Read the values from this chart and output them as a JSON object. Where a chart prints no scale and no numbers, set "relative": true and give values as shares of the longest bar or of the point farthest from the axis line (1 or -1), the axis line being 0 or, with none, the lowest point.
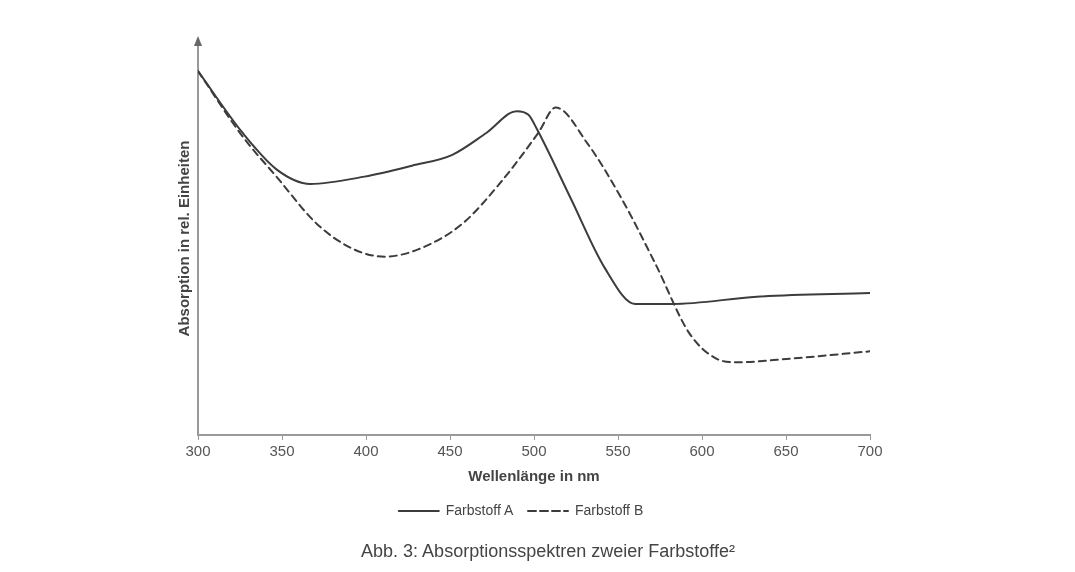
{
  "chart_data": {
    "type": "line",
    "xlabel": "Wellenlänge in nm",
    "ylabel": "Absorption in rel. Einheiten",
    "relative": true,
    "xlim": [
      300,
      700
    ],
    "xticks": [
      300,
      350,
      400,
      450,
      500,
      550,
      600,
      650,
      700
    ],
    "grid": false,
    "legend": "bottom",
    "marker": "none",
    "annotations": [
      "Abb. 3: Absorptionsspektren zweier Farbstoffe²"
    ],
    "series": [
      {
        "name": "Farbstoff A",
        "color": "#3c3c3c",
        "line_style": "solid",
        "x": [
          300,
          326.6,
          346.7,
          366.8,
          399.1,
          427.3,
          451.4,
          471.6,
          489.7,
          496.7,
          501.8,
          521.9,
          542,
          560.2,
          582.4,
          632.7,
          700
        ],
        "values": [
          1.0,
          0.83,
          0.73,
          0.69,
          0.71,
          0.74,
          0.77,
          0.83,
          0.89,
          0.88,
          0.84,
          0.65,
          0.46,
          0.36,
          0.36,
          0.38,
          0.39
        ]
      },
      {
        "name": "Farbstoff B",
        "color": "#3c3c3c",
        "line_style": "dashed",
        "x": [
          300,
          326.6,
          346.7,
          370.8,
          392.9,
          411,
          431,
          457.2,
          479.4,
          502.5,
          512.9,
          532,
          552.1,
          572.3,
          592.4,
          608.5,
          620.6,
          652.9,
          700
        ],
        "values": [
          1.0,
          0.82,
          0.71,
          0.58,
          0.51,
          0.49,
          0.51,
          0.58,
          0.69,
          0.83,
          0.9,
          0.8,
          0.65,
          0.47,
          0.28,
          0.21,
          0.2,
          0.21,
          0.23
        ]
      }
    ]
  }
}
